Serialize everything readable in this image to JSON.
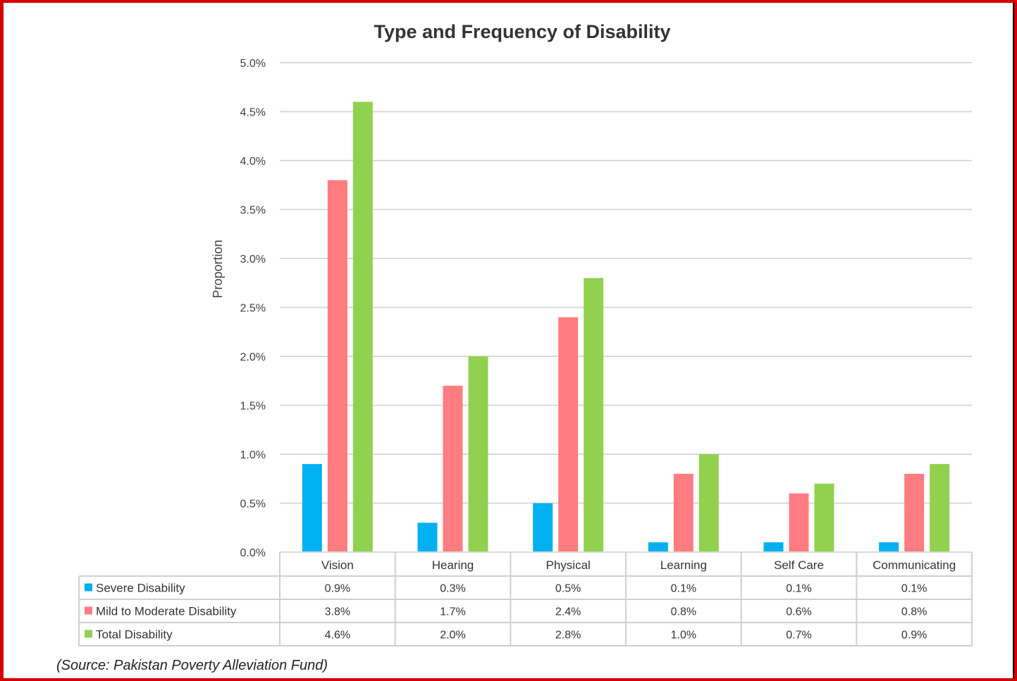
{
  "source_note": "(Source: Pakistan Poverty Alleviation Fund)",
  "colors": {
    "severe": "#00b0f0",
    "mild": "#ff7c80",
    "total": "#92d050",
    "grid": "#d9d9d9",
    "text": "#404040"
  },
  "chart_data": {
    "type": "bar",
    "title": "Type and Frequency of Disability",
    "ylabel": "Proportion",
    "xlabel": "",
    "ylim": [
      0,
      5
    ],
    "yticks": [
      "0.0%",
      "0.5%",
      "1.0%",
      "1.5%",
      "2.0%",
      "2.5%",
      "3.0%",
      "3.5%",
      "4.0%",
      "4.5%",
      "5.0%"
    ],
    "categories": [
      "Vision",
      "Hearing",
      "Physical",
      "Learning",
      "Self Care",
      "Communicating"
    ],
    "series": [
      {
        "name": "Severe Disability",
        "values": [
          0.9,
          0.3,
          0.5,
          0.1,
          0.1,
          0.1
        ],
        "labels": [
          "0.9%",
          "0.3%",
          "0.5%",
          "0.1%",
          "0.1%",
          "0.1%"
        ]
      },
      {
        "name": "Mild to Moderate Disability",
        "values": [
          3.8,
          1.7,
          2.4,
          0.8,
          0.6,
          0.8
        ],
        "labels": [
          "3.8%",
          "1.7%",
          "2.4%",
          "0.8%",
          "0.6%",
          "0.8%"
        ]
      },
      {
        "name": "Total Disability",
        "values": [
          4.6,
          2.0,
          2.8,
          1.0,
          0.7,
          0.9
        ],
        "labels": [
          "4.6%",
          "2.0%",
          "2.8%",
          "1.0%",
          "0.7%",
          "0.9%"
        ]
      }
    ],
    "grid": true,
    "legend": "data-table"
  }
}
